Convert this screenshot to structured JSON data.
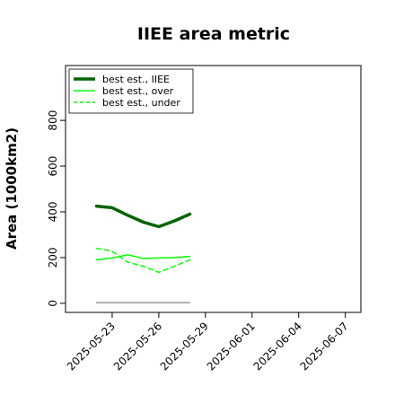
{
  "chart_data": {
    "type": "line",
    "title": "IIEE area metric",
    "xlabel": "",
    "ylabel": "Area (1000km2)",
    "x": [
      "2025-05-22",
      "2025-05-23",
      "2025-05-24",
      "2025-05-25",
      "2025-05-26",
      "2025-05-27",
      "2025-05-28"
    ],
    "xticks": [
      "2025-05-23",
      "2025-05-26",
      "2025-05-29",
      "2025-06-01",
      "2025-06-04",
      "2025-06-07"
    ],
    "xlim": [
      "2025-05-20",
      "2025-06-08"
    ],
    "yticks": [
      0,
      200,
      400,
      600,
      800
    ],
    "ylim": [
      -40,
      1040
    ],
    "grid": false,
    "legend_position": "top-left",
    "series": [
      {
        "name": "best est., IIEE",
        "color": "#006400",
        "style": "solid",
        "width": 3.5,
        "values": [
          425,
          418,
          385,
          355,
          335,
          360,
          390
        ]
      },
      {
        "name": "best est., over",
        "color": "#00ff00",
        "style": "solid",
        "width": 1.5,
        "values": [
          190,
          198,
          212,
          196,
          198,
          200,
          205
        ]
      },
      {
        "name": "best est., under",
        "color": "#00ff00",
        "style": "dashed",
        "width": 1.5,
        "values": [
          240,
          228,
          180,
          162,
          135,
          162,
          190
        ]
      },
      {
        "name": "",
        "color": "#808080",
        "style": "solid",
        "width": 1.2,
        "values": [
          3,
          3,
          3,
          3,
          3,
          3,
          3
        ]
      }
    ]
  }
}
